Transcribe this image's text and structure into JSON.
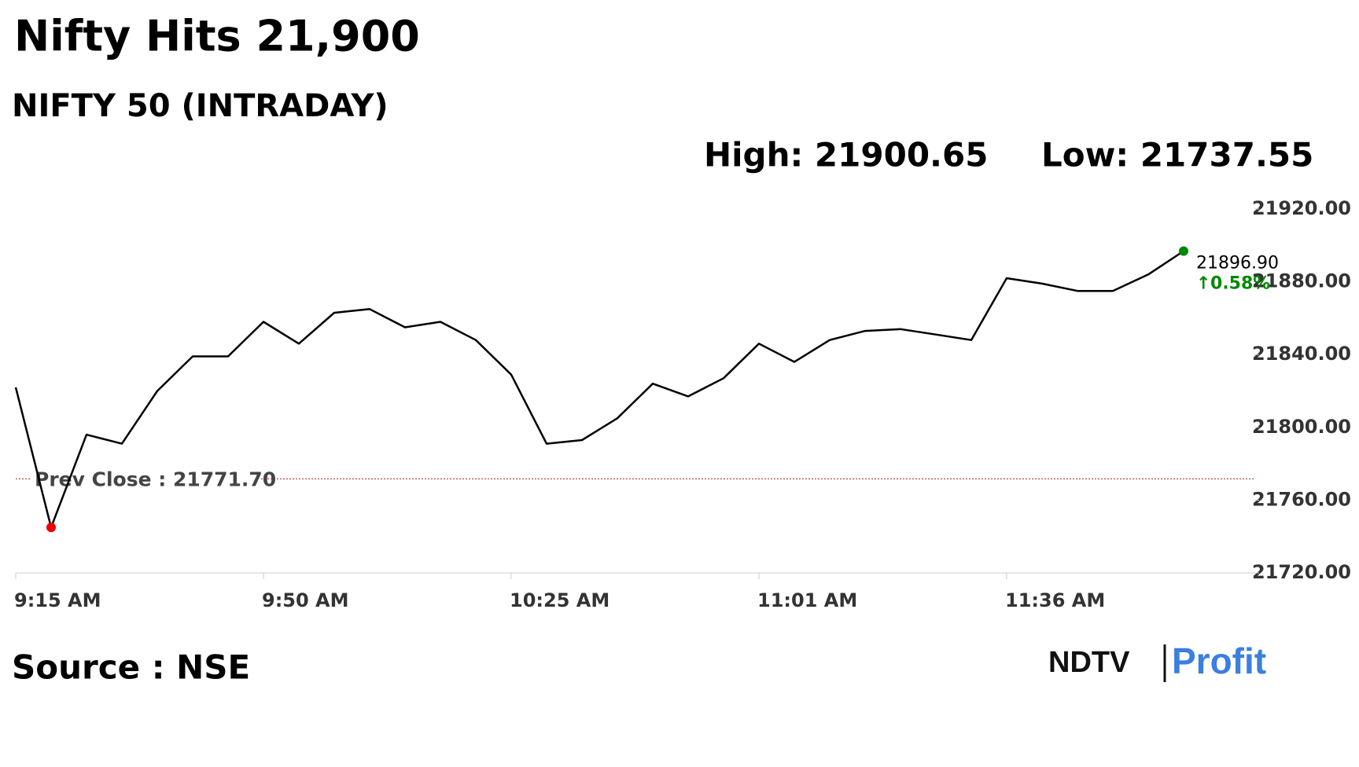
{
  "header": {
    "title": "Nifty Hits 21,900",
    "subtitle": "NIFTY 50 (INTRADAY)",
    "high": "High: 21900.65",
    "low": "Low: 21737.55"
  },
  "chart_data": {
    "type": "line",
    "categories": [
      "9:15 AM",
      null,
      null,
      null,
      null,
      null,
      null,
      "9:50 AM",
      null,
      null,
      null,
      null,
      null,
      null,
      "10:25 AM",
      null,
      null,
      null,
      null,
      null,
      null,
      "11:01 AM",
      null,
      null,
      null,
      null,
      null,
      null,
      "11:36 AM",
      null,
      null,
      null,
      null,
      null,
      null,
      null
    ],
    "series": [
      {
        "name": "NIFTY 50",
        "color": "#000000",
        "values": [
          21822,
          21745,
          21796,
          21791,
          21820,
          21839,
          21839,
          21858,
          21846,
          21863,
          21865,
          21855,
          21858,
          21848,
          21829,
          21791,
          21793,
          21805,
          21824,
          21817,
          21827,
          21846,
          21836,
          21848,
          21853,
          21854,
          21851,
          21848,
          21882,
          21879,
          21875,
          21875,
          21884,
          21896.9,
          null,
          null
        ],
        "value_labels": {
          "33": "21896.90"
        }
      }
    ],
    "change": "0.58%",
    "prev_close": 21771.7,
    "prev_close_label": "Prev Close : 21771.70",
    "ylim": [
      21720,
      21920
    ],
    "yticks": [
      {
        "value": 21720,
        "label": "21720.00"
      },
      {
        "value": 21760,
        "label": "21760.00"
      },
      {
        "value": 21800,
        "label": "21800.00"
      },
      {
        "value": 21840,
        "label": "21840.00"
      },
      {
        "value": 21880,
        "label": "21880.00"
      },
      {
        "value": 21920,
        "label": "21920.00"
      }
    ]
  },
  "footer": {
    "source": "Source : NSE",
    "brand": "NDTV",
    "brand2": "Profit"
  }
}
